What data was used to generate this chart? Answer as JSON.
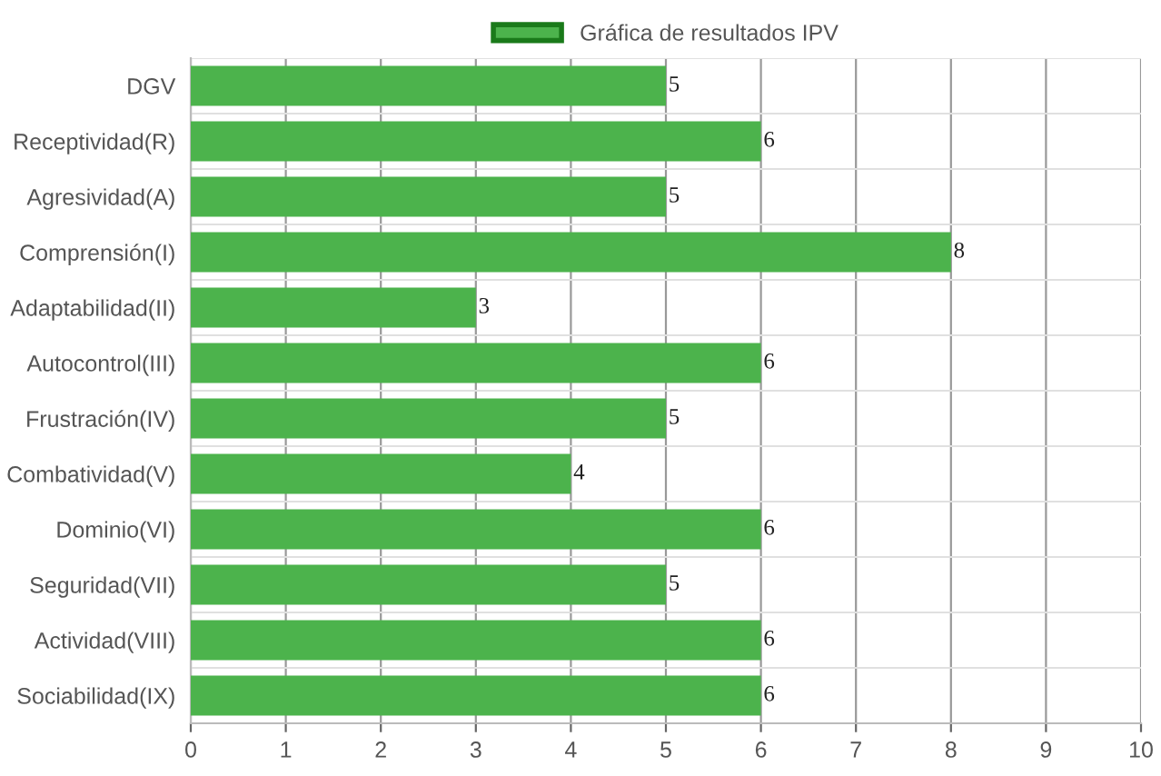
{
  "chart_data": {
    "type": "bar",
    "orientation": "horizontal",
    "categories": [
      "DGV",
      "Receptividad(R)",
      "Agresividad(A)",
      "Comprensión(I)",
      "Adaptabilidad(II)",
      "Autocontrol(III)",
      "Frustración(IV)",
      "Combatividad(V)",
      "Dominio(VI)",
      "Seguridad(VII)",
      "Actividad(VIII)",
      "Sociabilidad(IX)"
    ],
    "series": [
      {
        "name": "Gráfica de resultados IPV",
        "color": "#4cb34c",
        "values": [
          5,
          6,
          5,
          8,
          3,
          6,
          5,
          4,
          6,
          5,
          6,
          6
        ]
      }
    ],
    "xlim": [
      0,
      10
    ],
    "xticks": [
      0,
      1,
      2,
      3,
      4,
      5,
      6,
      7,
      8,
      9,
      10
    ],
    "grid": true,
    "legend": "top",
    "data_labels": true
  }
}
